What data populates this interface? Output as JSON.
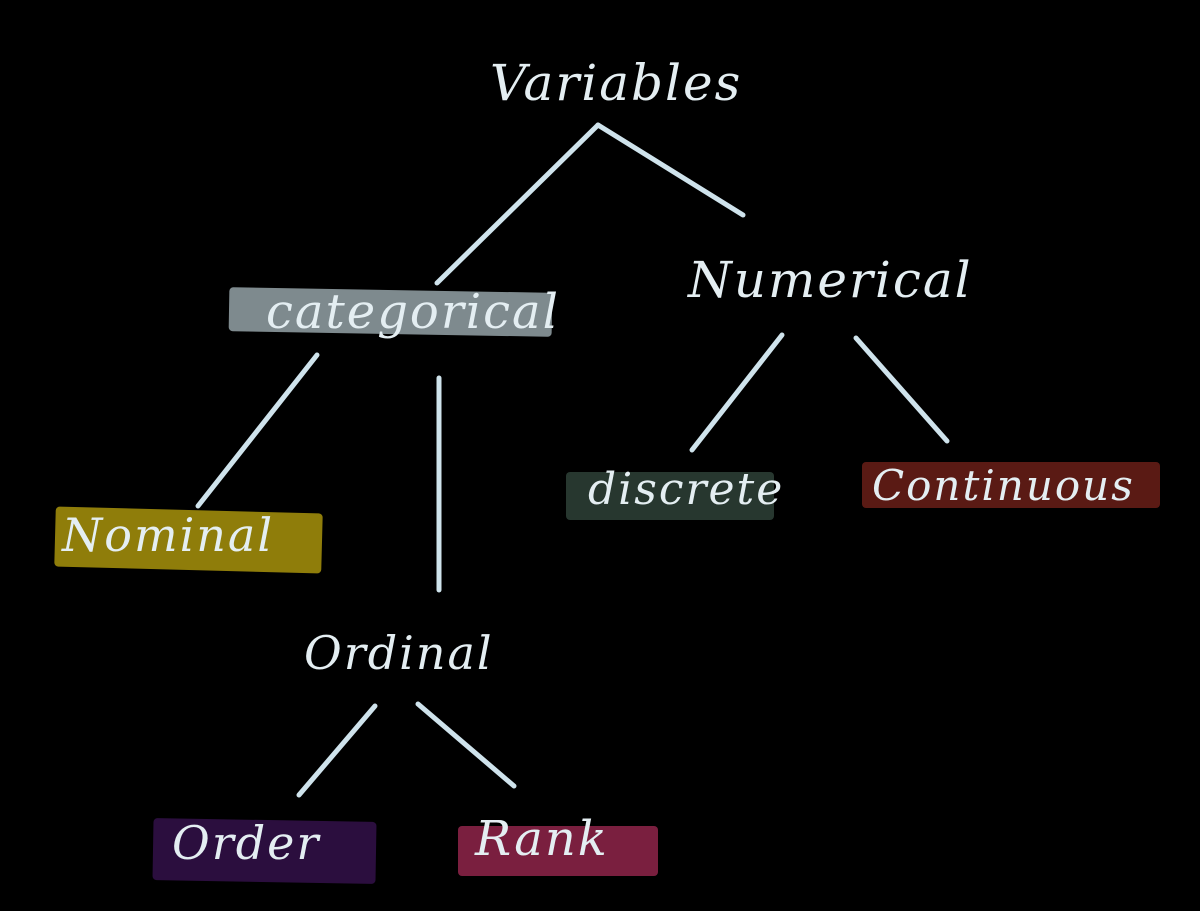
{
  "diagram": {
    "background": "#000000",
    "line_color": "#cfe3ec",
    "text_color": "#e4eef2",
    "nodes": {
      "variables": {
        "label": "Variables"
      },
      "categorical": {
        "label": "categorical",
        "highlight": "#7e8a8e"
      },
      "numerical": {
        "label": "Numerical"
      },
      "nominal": {
        "label": "Nominal",
        "highlight": "#8f7d0a"
      },
      "ordinal": {
        "label": "Ordinal"
      },
      "discrete": {
        "label": "discrete",
        "highlight": "#27372f"
      },
      "continuous": {
        "label": "Continuous",
        "highlight": "#5a1a14"
      },
      "order": {
        "label": "Order",
        "highlight": "#2b0e3e"
      },
      "rank": {
        "label": "Rank",
        "highlight": "#7a1f3f"
      }
    },
    "edges": [
      {
        "from": "Variables",
        "to": "categorical"
      },
      {
        "from": "Variables",
        "to": "Numerical"
      },
      {
        "from": "categorical",
        "to": "Nominal"
      },
      {
        "from": "categorical",
        "to": "Ordinal"
      },
      {
        "from": "Numerical",
        "to": "discrete"
      },
      {
        "from": "Numerical",
        "to": "Continuous"
      },
      {
        "from": "Ordinal",
        "to": "Order"
      },
      {
        "from": "Ordinal",
        "to": "Rank"
      }
    ]
  }
}
